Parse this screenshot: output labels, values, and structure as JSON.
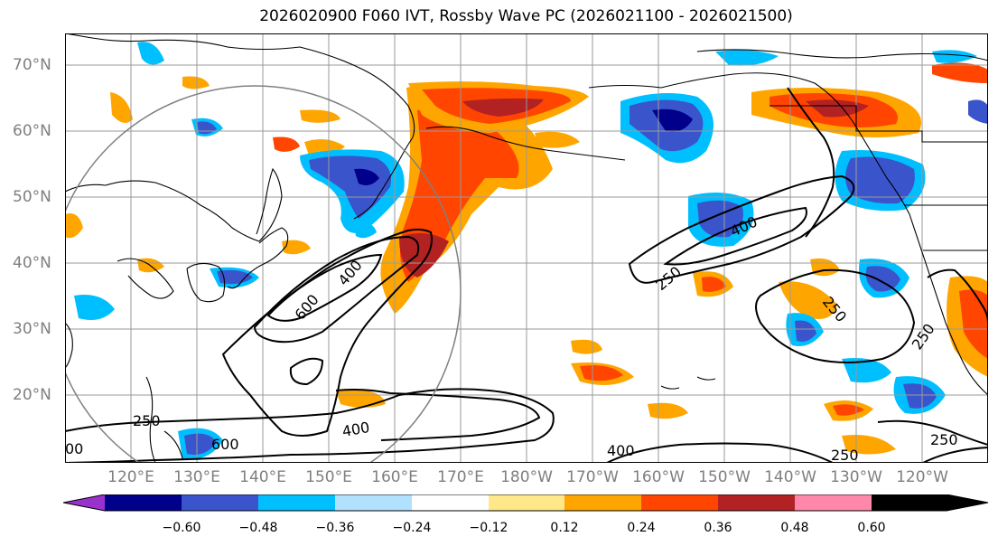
{
  "title": "2026020900 F060 IVT, Rossby Wave PC (2026021100 - 2026021500)",
  "lat_labels": [
    "70°N",
    "60°N",
    "50°N",
    "40°N",
    "30°N",
    "20°N"
  ],
  "lon_labels": [
    "120°E",
    "130°E",
    "140°E",
    "150°E",
    "160°E",
    "170°E",
    "180°W",
    "170°W",
    "160°W",
    "150°W",
    "140°W",
    "130°W",
    "120°W"
  ],
  "contour_labels": [
    "600",
    "400",
    "250",
    "400",
    "250",
    "250",
    "400",
    "250",
    "250",
    "600",
    "400",
    "250",
    "400",
    "250",
    "250",
    "00"
  ],
  "colorbar": {
    "ticks": [
      "−0.60",
      "−0.48",
      "−0.36",
      "−0.24",
      "−0.12",
      "0.12",
      "0.24",
      "0.36",
      "0.48",
      "0.60"
    ],
    "colors": [
      "#9932cc",
      "#00008b",
      "#3a55cc",
      "#00bfff",
      "#b0e2ff",
      "#ffffff",
      "#ffe88a",
      "#ffa500",
      "#ff4500",
      "#b22222",
      "#ff88aa"
    ]
  },
  "palette": {
    "land_line": "#000000",
    "grid": "#9a9a9a",
    "circle": "#808080"
  }
}
